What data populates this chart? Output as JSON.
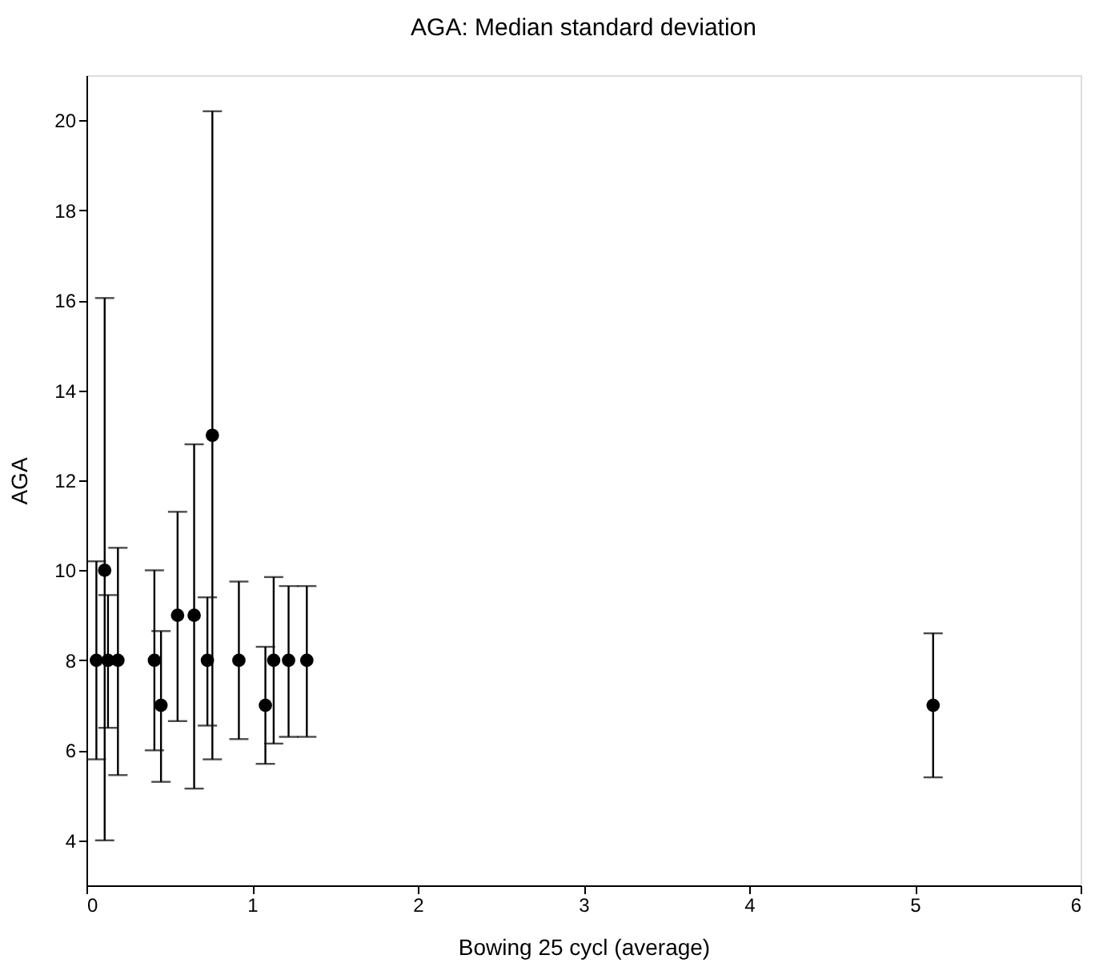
{
  "chart_data": {
    "type": "scatter",
    "title": "AGA: Median standard deviation",
    "xlabel": "Bowing 25 cycl (average)",
    "ylabel": "AGA",
    "x": [
      0.06,
      0.11,
      0.13,
      0.19,
      0.41,
      0.45,
      0.55,
      0.65,
      0.73,
      0.76,
      0.92,
      1.08,
      1.13,
      1.22,
      1.33,
      5.11
    ],
    "series": [
      {
        "color": "#000000",
        "values": [
          8,
          10,
          8,
          8,
          8,
          7,
          9,
          9,
          8,
          13,
          8,
          7,
          8,
          8,
          8,
          7
        ],
        "errors": [
          [
            5.8,
            10.2
          ],
          [
            4,
            16.05
          ],
          [
            6.5,
            9.45
          ],
          [
            5.45,
            10.5
          ],
          [
            6,
            10
          ],
          [
            5.3,
            8.65
          ],
          [
            6.65,
            11.3
          ],
          [
            5.15,
            12.8
          ],
          [
            6.55,
            9.4
          ],
          [
            5.8,
            20.2
          ],
          [
            6.25,
            9.75
          ],
          [
            5.7,
            8.3
          ],
          [
            6.15,
            9.85
          ],
          [
            6.3,
            9.65
          ],
          [
            6.3,
            9.65
          ],
          [
            5.4,
            8.6
          ]
        ]
      }
    ],
    "xlim": [
      0,
      6
    ],
    "xticks": [
      0,
      1,
      2,
      3,
      4,
      5,
      6
    ],
    "ylim": [
      3,
      21
    ],
    "yticks": [
      4,
      6,
      8,
      10,
      12,
      14,
      16,
      18,
      20
    ],
    "marker": "circle",
    "grid": false
  }
}
